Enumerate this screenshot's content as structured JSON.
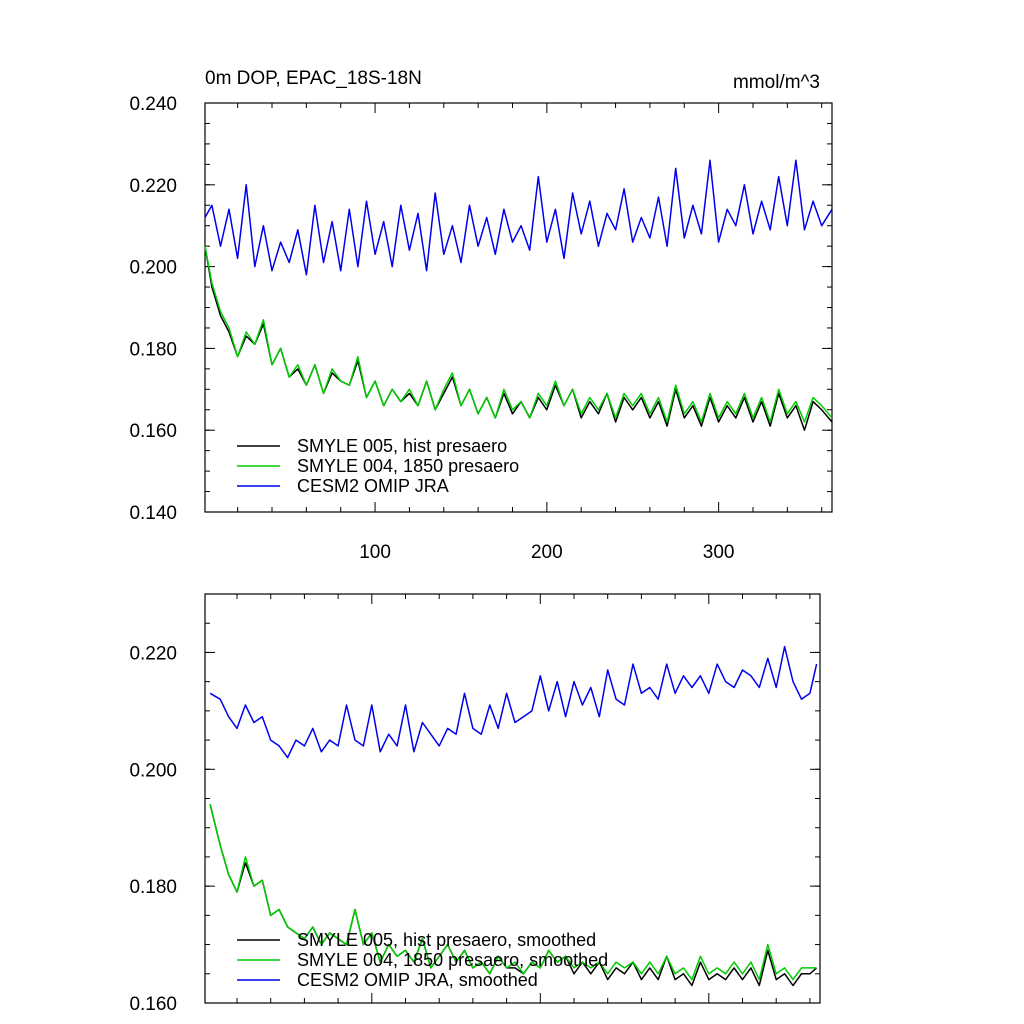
{
  "chart_data": [
    {
      "type": "line",
      "title": "0m DOP, EPAC_18S-18N",
      "units": "mmol/m^3",
      "xlim": [
        1,
        366
      ],
      "ylim": [
        0.14,
        0.24
      ],
      "x_ticks": [
        100,
        200,
        300
      ],
      "x_tick_labels": [
        "100",
        "200",
        "300"
      ],
      "y_ticks": [
        0.14,
        0.16,
        0.18,
        0.2,
        0.22,
        0.24
      ],
      "y_tick_labels": [
        "0.140",
        "0.160",
        "0.180",
        "0.200",
        "0.220",
        "0.240"
      ],
      "legend_position": "bottom-left",
      "series": [
        {
          "name": "SMYLE 005, hist presaero",
          "color": "#000000",
          "x": [
            1,
            5,
            10,
            15,
            20,
            25,
            30,
            35,
            40,
            45,
            50,
            55,
            60,
            65,
            70,
            75,
            80,
            85,
            90,
            95,
            100,
            105,
            110,
            115,
            120,
            125,
            130,
            135,
            140,
            145,
            150,
            155,
            160,
            165,
            170,
            175,
            180,
            185,
            190,
            195,
            200,
            205,
            210,
            215,
            220,
            225,
            230,
            235,
            240,
            245,
            250,
            255,
            260,
            265,
            270,
            275,
            280,
            285,
            290,
            295,
            300,
            305,
            310,
            315,
            320,
            325,
            330,
            335,
            340,
            345,
            350,
            355,
            360,
            366
          ],
          "values": [
            0.205,
            0.195,
            0.188,
            0.184,
            0.178,
            0.183,
            0.181,
            0.186,
            0.176,
            0.18,
            0.173,
            0.175,
            0.171,
            0.176,
            0.169,
            0.174,
            0.172,
            0.171,
            0.177,
            0.168,
            0.172,
            0.166,
            0.17,
            0.167,
            0.169,
            0.166,
            0.172,
            0.165,
            0.169,
            0.173,
            0.166,
            0.17,
            0.164,
            0.168,
            0.163,
            0.169,
            0.164,
            0.167,
            0.163,
            0.168,
            0.165,
            0.171,
            0.166,
            0.17,
            0.163,
            0.167,
            0.164,
            0.169,
            0.162,
            0.168,
            0.165,
            0.168,
            0.163,
            0.167,
            0.161,
            0.17,
            0.163,
            0.166,
            0.161,
            0.168,
            0.162,
            0.166,
            0.163,
            0.168,
            0.162,
            0.167,
            0.161,
            0.169,
            0.163,
            0.166,
            0.16,
            0.167,
            0.165,
            0.162
          ]
        },
        {
          "name": "SMYLE 004, 1850 presaero",
          "color": "#00cc00",
          "x": [
            1,
            5,
            10,
            15,
            20,
            25,
            30,
            35,
            40,
            45,
            50,
            55,
            60,
            65,
            70,
            75,
            80,
            85,
            90,
            95,
            100,
            105,
            110,
            115,
            120,
            125,
            130,
            135,
            140,
            145,
            150,
            155,
            160,
            165,
            170,
            175,
            180,
            185,
            190,
            195,
            200,
            205,
            210,
            215,
            220,
            225,
            230,
            235,
            240,
            245,
            250,
            255,
            260,
            265,
            270,
            275,
            280,
            285,
            290,
            295,
            300,
            305,
            310,
            315,
            320,
            325,
            330,
            335,
            340,
            345,
            350,
            355,
            360,
            366
          ],
          "values": [
            0.205,
            0.196,
            0.189,
            0.185,
            0.178,
            0.184,
            0.181,
            0.187,
            0.176,
            0.18,
            0.173,
            0.176,
            0.171,
            0.176,
            0.169,
            0.175,
            0.172,
            0.171,
            0.178,
            0.168,
            0.172,
            0.166,
            0.17,
            0.167,
            0.17,
            0.166,
            0.172,
            0.165,
            0.17,
            0.174,
            0.166,
            0.17,
            0.164,
            0.168,
            0.163,
            0.17,
            0.165,
            0.167,
            0.163,
            0.169,
            0.166,
            0.172,
            0.166,
            0.17,
            0.164,
            0.168,
            0.165,
            0.169,
            0.163,
            0.169,
            0.166,
            0.169,
            0.164,
            0.168,
            0.162,
            0.171,
            0.164,
            0.167,
            0.162,
            0.169,
            0.163,
            0.167,
            0.164,
            0.169,
            0.163,
            0.168,
            0.162,
            0.17,
            0.164,
            0.167,
            0.162,
            0.168,
            0.166,
            0.163
          ]
        },
        {
          "name": "CESM2 OMIP JRA",
          "color": "#0000ee",
          "x": [
            1,
            5,
            10,
            15,
            20,
            25,
            30,
            35,
            40,
            45,
            50,
            55,
            60,
            65,
            70,
            75,
            80,
            85,
            90,
            95,
            100,
            105,
            110,
            115,
            120,
            125,
            130,
            135,
            140,
            145,
            150,
            155,
            160,
            165,
            170,
            175,
            180,
            185,
            190,
            195,
            200,
            205,
            210,
            215,
            220,
            225,
            230,
            235,
            240,
            245,
            250,
            255,
            260,
            265,
            270,
            275,
            280,
            285,
            290,
            295,
            300,
            305,
            310,
            315,
            320,
            325,
            330,
            335,
            340,
            345,
            350,
            355,
            360,
            366
          ],
          "values": [
            0.212,
            0.215,
            0.205,
            0.214,
            0.202,
            0.22,
            0.2,
            0.21,
            0.199,
            0.206,
            0.201,
            0.209,
            0.198,
            0.215,
            0.201,
            0.211,
            0.199,
            0.214,
            0.2,
            0.216,
            0.203,
            0.211,
            0.2,
            0.215,
            0.204,
            0.213,
            0.199,
            0.218,
            0.203,
            0.21,
            0.201,
            0.215,
            0.205,
            0.212,
            0.203,
            0.214,
            0.206,
            0.21,
            0.204,
            0.222,
            0.206,
            0.214,
            0.202,
            0.218,
            0.208,
            0.216,
            0.205,
            0.213,
            0.209,
            0.219,
            0.206,
            0.212,
            0.207,
            0.217,
            0.205,
            0.224,
            0.207,
            0.215,
            0.208,
            0.226,
            0.206,
            0.214,
            0.21,
            0.22,
            0.208,
            0.216,
            0.209,
            0.222,
            0.21,
            0.226,
            0.209,
            0.216,
            0.21,
            0.214
          ]
        }
      ]
    },
    {
      "type": "line",
      "xlim": [
        1,
        366
      ],
      "ylim": [
        0.16,
        0.23
      ],
      "x_ticks": [
        100,
        200,
        300
      ],
      "y_ticks": [
        0.16,
        0.18,
        0.2,
        0.22
      ],
      "y_tick_labels": [
        "0.160",
        "0.180",
        "0.200",
        "0.220"
      ],
      "legend_position": "bottom-left",
      "series": [
        {
          "name": "SMYLE 005, hist presaero, smoothed",
          "color": "#000000",
          "x": [
            4,
            10,
            15,
            20,
            25,
            30,
            35,
            40,
            45,
            50,
            55,
            60,
            65,
            70,
            75,
            80,
            85,
            90,
            95,
            100,
            105,
            110,
            115,
            120,
            125,
            130,
            135,
            140,
            145,
            150,
            155,
            160,
            165,
            170,
            175,
            180,
            185,
            190,
            195,
            200,
            205,
            210,
            215,
            220,
            225,
            230,
            235,
            240,
            245,
            250,
            255,
            260,
            265,
            270,
            275,
            280,
            285,
            290,
            295,
            300,
            305,
            310,
            315,
            320,
            325,
            330,
            335,
            340,
            345,
            350,
            355,
            360,
            364
          ],
          "values": [
            0.194,
            0.187,
            0.182,
            0.179,
            0.184,
            0.18,
            0.181,
            0.175,
            0.176,
            0.173,
            0.172,
            0.171,
            0.173,
            0.17,
            0.172,
            0.171,
            0.17,
            0.176,
            0.17,
            0.172,
            0.167,
            0.17,
            0.168,
            0.169,
            0.167,
            0.171,
            0.166,
            0.168,
            0.17,
            0.167,
            0.169,
            0.166,
            0.167,
            0.165,
            0.168,
            0.166,
            0.166,
            0.165,
            0.167,
            0.166,
            0.169,
            0.167,
            0.168,
            0.165,
            0.167,
            0.165,
            0.167,
            0.164,
            0.166,
            0.165,
            0.167,
            0.164,
            0.166,
            0.164,
            0.168,
            0.164,
            0.165,
            0.163,
            0.167,
            0.164,
            0.165,
            0.164,
            0.166,
            0.164,
            0.166,
            0.163,
            0.169,
            0.164,
            0.165,
            0.163,
            0.165,
            0.165,
            0.166
          ]
        },
        {
          "name": "SMYLE 004, 1850 presaero, smoothed",
          "color": "#00cc00",
          "x": [
            4,
            10,
            15,
            20,
            25,
            30,
            35,
            40,
            45,
            50,
            55,
            60,
            65,
            70,
            75,
            80,
            85,
            90,
            95,
            100,
            105,
            110,
            115,
            120,
            125,
            130,
            135,
            140,
            145,
            150,
            155,
            160,
            165,
            170,
            175,
            180,
            185,
            190,
            195,
            200,
            205,
            210,
            215,
            220,
            225,
            230,
            235,
            240,
            245,
            250,
            255,
            260,
            265,
            270,
            275,
            280,
            285,
            290,
            295,
            300,
            305,
            310,
            315,
            320,
            325,
            330,
            335,
            340,
            345,
            350,
            355,
            360,
            364
          ],
          "values": [
            0.194,
            0.187,
            0.182,
            0.179,
            0.185,
            0.18,
            0.181,
            0.175,
            0.176,
            0.173,
            0.172,
            0.171,
            0.173,
            0.17,
            0.172,
            0.171,
            0.17,
            0.176,
            0.17,
            0.172,
            0.167,
            0.17,
            0.168,
            0.169,
            0.167,
            0.171,
            0.166,
            0.168,
            0.17,
            0.167,
            0.169,
            0.166,
            0.167,
            0.165,
            0.168,
            0.166,
            0.167,
            0.165,
            0.167,
            0.166,
            0.169,
            0.167,
            0.168,
            0.166,
            0.167,
            0.166,
            0.167,
            0.165,
            0.167,
            0.166,
            0.167,
            0.165,
            0.167,
            0.165,
            0.168,
            0.165,
            0.166,
            0.164,
            0.168,
            0.165,
            0.166,
            0.165,
            0.167,
            0.165,
            0.167,
            0.164,
            0.17,
            0.165,
            0.166,
            0.164,
            0.166,
            0.166,
            0.166
          ]
        },
        {
          "name": "CESM2 OMIP JRA, smoothed",
          "color": "#0000ee",
          "x": [
            4,
            10,
            15,
            20,
            25,
            30,
            35,
            40,
            45,
            50,
            55,
            60,
            65,
            70,
            75,
            80,
            85,
            90,
            95,
            100,
            105,
            110,
            115,
            120,
            125,
            130,
            135,
            140,
            145,
            150,
            155,
            160,
            165,
            170,
            175,
            180,
            185,
            190,
            195,
            200,
            205,
            210,
            215,
            220,
            225,
            230,
            235,
            240,
            245,
            250,
            255,
            260,
            265,
            270,
            275,
            280,
            285,
            290,
            295,
            300,
            305,
            310,
            315,
            320,
            325,
            330,
            335,
            340,
            345,
            350,
            355,
            360,
            364
          ],
          "values": [
            0.213,
            0.212,
            0.209,
            0.207,
            0.211,
            0.208,
            0.209,
            0.205,
            0.204,
            0.202,
            0.205,
            0.204,
            0.207,
            0.203,
            0.205,
            0.204,
            0.211,
            0.205,
            0.204,
            0.211,
            0.203,
            0.206,
            0.204,
            0.211,
            0.203,
            0.208,
            0.206,
            0.204,
            0.207,
            0.206,
            0.213,
            0.207,
            0.206,
            0.211,
            0.207,
            0.213,
            0.208,
            0.209,
            0.21,
            0.216,
            0.21,
            0.215,
            0.209,
            0.215,
            0.211,
            0.214,
            0.209,
            0.217,
            0.212,
            0.211,
            0.218,
            0.213,
            0.214,
            0.212,
            0.218,
            0.213,
            0.216,
            0.214,
            0.216,
            0.213,
            0.218,
            0.215,
            0.214,
            0.217,
            0.216,
            0.214,
            0.219,
            0.214,
            0.221,
            0.215,
            0.212,
            0.213,
            0.218
          ]
        }
      ]
    }
  ]
}
